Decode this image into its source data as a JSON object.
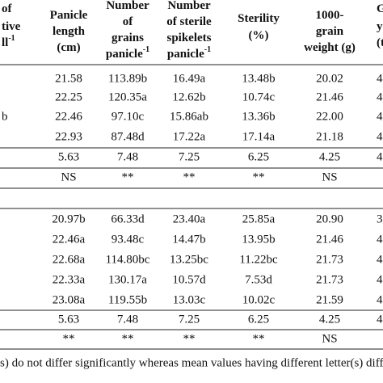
{
  "table": {
    "headers": [
      {
        "lines": [
          "of",
          "tive",
          "ll"
        ],
        "sup": "-1"
      },
      {
        "lines": [
          "Panicle",
          "length",
          "(cm)"
        ]
      },
      {
        "lines": [
          "Number",
          "of",
          "grains",
          "panicle"
        ],
        "sup": "-1"
      },
      {
        "lines": [
          "Number",
          "of sterile",
          "spikelets",
          "panicle"
        ],
        "sup": "-1"
      },
      {
        "lines": [
          "Sterility",
          "(%)"
        ]
      },
      {
        "lines": [
          "1000-",
          "grain",
          "weight (g)"
        ]
      },
      {
        "lines": [
          "G",
          "y",
          "(t"
        ]
      }
    ],
    "rows": [
      [
        null,
        "21.58",
        "113.89b",
        "16.49a",
        "13.48b",
        "20.02",
        "4"
      ],
      [
        null,
        "22.25",
        "120.35a",
        "12.62b",
        "10.74c",
        "21.46",
        "4"
      ],
      [
        "b",
        "22.46",
        "97.10c",
        "15.86ab",
        "13.36b",
        "22.00",
        "4"
      ],
      [
        null,
        "22.93",
        "87.48d",
        "17.22a",
        "17.14a",
        "21.18",
        "4"
      ],
      [
        null,
        "5.63",
        "7.48",
        "7.25",
        "6.25",
        "4.25",
        "4"
      ],
      [
        null,
        "NS",
        "**",
        "**",
        "**",
        "NS",
        null
      ],
      [
        null,
        "20.97b",
        "66.33d",
        "23.40a",
        "25.85a",
        "20.90",
        "3"
      ],
      [
        null,
        "22.46a",
        "93.48c",
        "14.47b",
        "13.95b",
        "21.46",
        "4"
      ],
      [
        null,
        "22.68a",
        "114.80bc",
        "13.25bc",
        "11.22bc",
        "21.73",
        "4"
      ],
      [
        null,
        "22.33a",
        "130.17a",
        "10.57d",
        "7.53d",
        "21.73",
        "4"
      ],
      [
        null,
        "23.08a",
        "119.55b",
        "13.03c",
        "10.02c",
        "21.59",
        "4"
      ],
      [
        null,
        "5.63",
        "7.48",
        "7.25",
        "6.25",
        "4.25",
        "4"
      ],
      [
        null,
        "**",
        "**",
        "**",
        "**",
        "NS",
        null
      ]
    ],
    "footnote": "s) do not differ significantly whereas mean values having different letter(s) differ s"
  }
}
